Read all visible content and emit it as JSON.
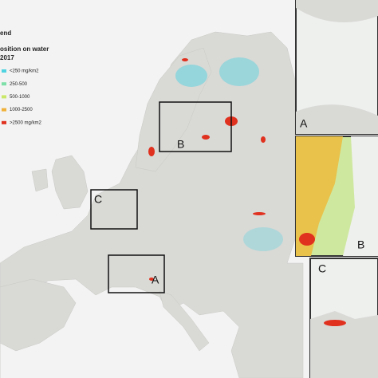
{
  "legend": {
    "title": "end",
    "subtitle": "osition on water",
    "year": "2017",
    "items": [
      {
        "label": "<250 mg/km2",
        "color": "#4fd3e0"
      },
      {
        "label": "250-500",
        "color": "#7ee0a8"
      },
      {
        "label": "500-1000",
        "color": "#c9e86a"
      },
      {
        "label": "1000-2500",
        "color": "#f0b13a"
      },
      {
        "label": ">2500 mg/km2",
        "color": "#e0301e"
      }
    ]
  },
  "map_boxes": [
    {
      "label": "B"
    },
    {
      "label": "C"
    },
    {
      "label": "A"
    }
  ],
  "insets": [
    {
      "label": "A"
    },
    {
      "label": "B"
    },
    {
      "label": "C"
    }
  ]
}
